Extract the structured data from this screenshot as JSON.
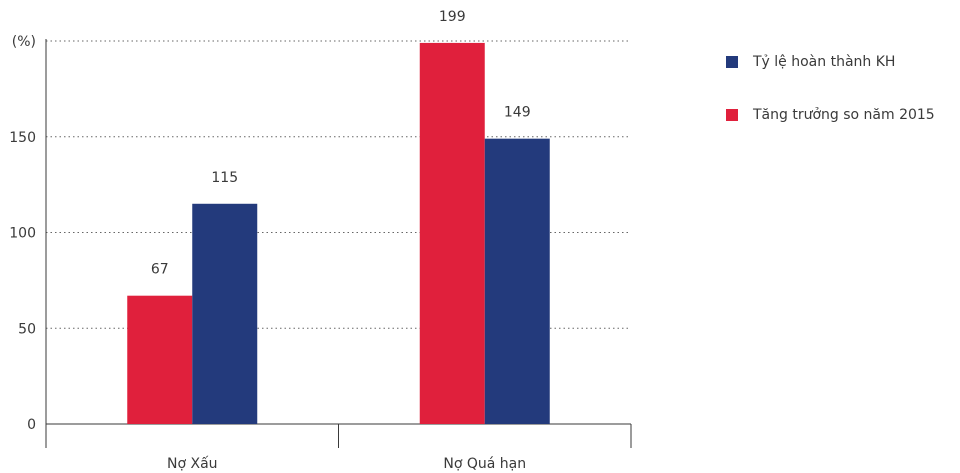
{
  "colors": {
    "ty_le": "#233a7c",
    "tang_truong": "#e0203c",
    "axis": "#3a3a3a",
    "grid": "#666666"
  },
  "chart_data": {
    "type": "bar",
    "categories": [
      "Nợ Xấu",
      "Nợ Quá hạn"
    ],
    "series": [
      {
        "name": "Tăng trưởng so năm 2015",
        "values": [
          67,
          199
        ],
        "color": "#e0203c"
      },
      {
        "name": "Tỷ lệ hoàn thành KH",
        "values": [
          115,
          149
        ],
        "color": "#233a7c"
      }
    ],
    "ylabel": "(%)",
    "ylim": [
      0,
      200
    ],
    "yticks": [
      0,
      50,
      100,
      150
    ],
    "grid": true,
    "legend_position": "right"
  },
  "legend": {
    "items": [
      {
        "label": "Tỷ lệ hoàn thành KH",
        "color": "#233a7c"
      },
      {
        "label": "Tăng trưởng so năm 2015",
        "color": "#e0203c"
      }
    ]
  }
}
